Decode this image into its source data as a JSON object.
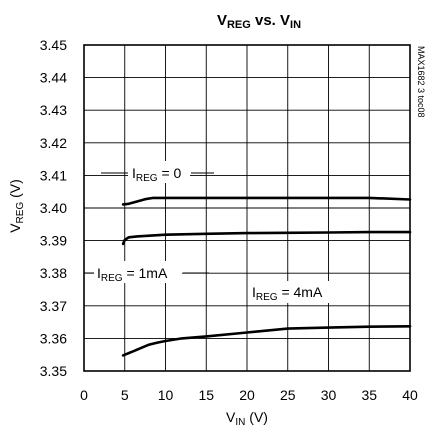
{
  "chart_data": {
    "type": "line",
    "title": {
      "main": "V",
      "main_sub": "REG",
      "mid": " vs. ",
      "end": "V",
      "end_sub": "IN"
    },
    "xlabel": {
      "main": "V",
      "sub": "IN",
      "rest": " (V)"
    },
    "ylabel": {
      "main": "V",
      "sub": "REG",
      "rest": " (V)"
    },
    "xlim": [
      0,
      40
    ],
    "ylim": [
      3.35,
      3.45
    ],
    "x_ticks": [
      "0",
      "5",
      "10",
      "15",
      "20",
      "25",
      "30",
      "35",
      "40"
    ],
    "y_ticks": [
      "3.35",
      "3.36",
      "3.37",
      "3.38",
      "3.39",
      "3.40",
      "3.41",
      "3.42",
      "3.43",
      "3.44",
      "3.45"
    ],
    "grid": true,
    "watermark": "MAX1682 3 toc08",
    "series": [
      {
        "name": {
          "main": "I",
          "sub": "REG",
          "rest": " = 0"
        },
        "x": [
          4.8,
          5.5,
          6.5,
          7.5,
          8.5,
          10,
          15,
          20,
          25,
          30,
          35,
          40
        ],
        "y": [
          3.4011,
          3.4013,
          3.402,
          3.4027,
          3.4031,
          3.4031,
          3.4031,
          3.4031,
          3.4031,
          3.4031,
          3.4031,
          3.4026
        ]
      },
      {
        "name": {
          "main": "I",
          "sub": "REG",
          "rest": " = 1mA"
        },
        "x": [
          4.8,
          5.0,
          5.5,
          6.5,
          8,
          10,
          15,
          20,
          25,
          30,
          35,
          40
        ],
        "y": [
          3.389,
          3.3902,
          3.391,
          3.3913,
          3.3915,
          3.3918,
          3.3921,
          3.3923,
          3.3924,
          3.3925,
          3.3926,
          3.3926
        ]
      },
      {
        "name": {
          "main": "I",
          "sub": "REG",
          "rest": " = 4mA"
        },
        "x": [
          4.8,
          6,
          7,
          8,
          9,
          10,
          12,
          15,
          20,
          25,
          30,
          35,
          40
        ],
        "y": [
          3.3548,
          3.356,
          3.3571,
          3.3581,
          3.3587,
          3.3592,
          3.36,
          3.3606,
          3.3618,
          3.363,
          3.3633,
          3.3636,
          3.3637
        ]
      }
    ]
  }
}
